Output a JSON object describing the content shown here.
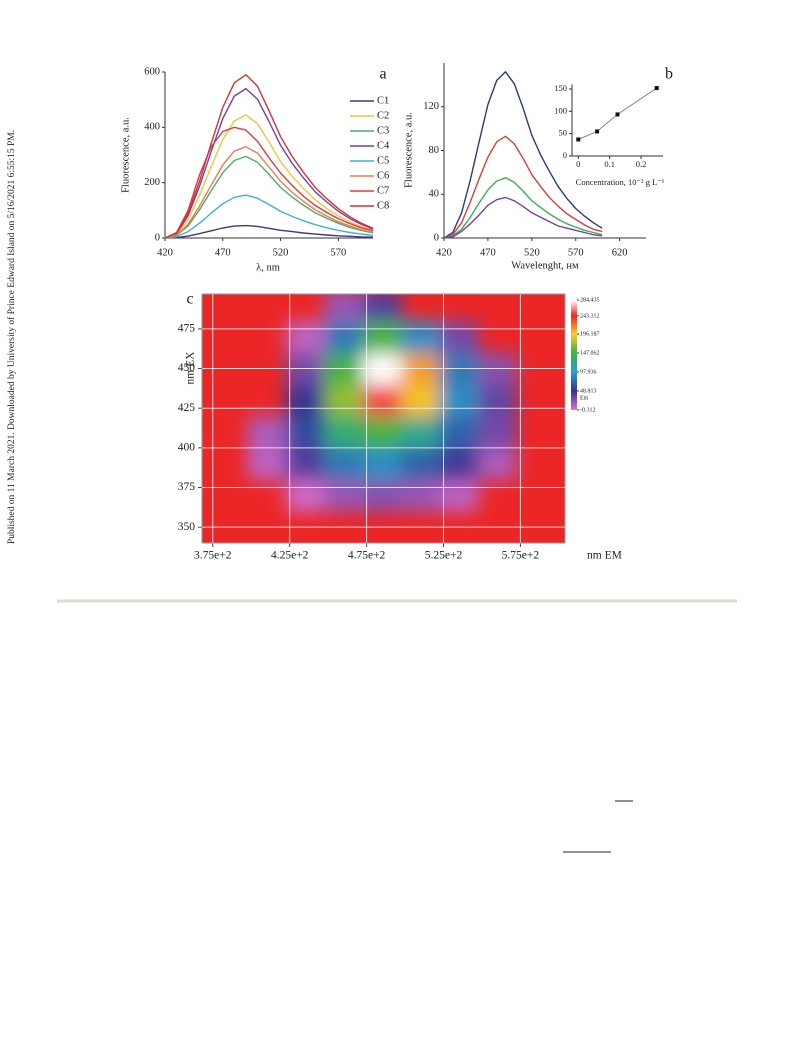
{
  "side_note": "Published on 11 March 2021. Downloaded by University of Prince Edward Island on 5/16/2021 6:55:15 PM.",
  "chart_data": [
    {
      "type": "line",
      "panel_label": "a",
      "xlabel": "λ, nm",
      "ylabel": "Fluorescence, a.u.",
      "x": [
        420,
        430,
        440,
        450,
        460,
        470,
        480,
        490,
        500,
        510,
        520,
        530,
        540,
        550,
        560,
        570,
        580,
        590,
        600
      ],
      "xlim": [
        420,
        600
      ],
      "xticks": [
        420,
        470,
        520,
        570
      ],
      "ylim": [
        0,
        600
      ],
      "yticks": [
        0,
        200,
        400,
        600
      ],
      "legend": "upper right",
      "series": [
        {
          "name": "C1",
          "color": "#3b3a7a",
          "values": [
            0,
            1,
            7,
            16,
            26,
            36,
            43,
            45,
            42,
            35,
            28,
            23,
            18,
            14,
            11,
            8,
            6,
            4,
            3
          ]
        },
        {
          "name": "C2",
          "color": "#f5c242",
          "values": [
            0,
            13,
            67,
            156,
            258,
            356,
            423,
            445,
            414,
            347,
            276,
            223,
            178,
            138,
            107,
            80,
            58,
            40,
            27
          ]
        },
        {
          "name": "C3",
          "color": "#4cae6a",
          "values": [
            0,
            9,
            44,
            103,
            171,
            236,
            280,
            295,
            274,
            230,
            183,
            148,
            118,
            91,
            71,
            53,
            38,
            27,
            18
          ]
        },
        {
          "name": "C4",
          "color": "#7b3fa0",
          "values": [
            0,
            16,
            81,
            189,
            313,
            432,
            513,
            540,
            502,
            421,
            335,
            270,
            216,
            167,
            130,
            97,
            70,
            49,
            32
          ]
        },
        {
          "name": "C5",
          "color": "#3fb0e0",
          "values": [
            0,
            5,
            23,
            54,
            90,
            124,
            147,
            155,
            144,
            121,
            96,
            78,
            62,
            48,
            37,
            28,
            20,
            14,
            9
          ]
        },
        {
          "name": "C6",
          "color": "#f07a50",
          "values": [
            0,
            10,
            50,
            116,
            191,
            264,
            314,
            330,
            307,
            257,
            205,
            165,
            132,
            102,
            79,
            59,
            43,
            30,
            20
          ]
        },
        {
          "name": "C7",
          "color": "#e03c3c",
          "values": [
            0,
            20,
            100,
            230,
            330,
            385,
            400,
            390,
            350,
            290,
            235,
            190,
            150,
            118,
            92,
            70,
            52,
            37,
            26
          ]
        },
        {
          "name": "C8",
          "color": "#cf3535",
          "values": [
            0,
            18,
            89,
            207,
            342,
            472,
            561,
            590,
            549,
            460,
            366,
            295,
            236,
            183,
            142,
            106,
            77,
            53,
            35
          ]
        }
      ]
    },
    {
      "type": "line",
      "panel_label": "b",
      "xlabel": "Wavelenght,  нм",
      "ylabel": "Fluorescence, a.u.",
      "x": [
        420,
        430,
        440,
        450,
        460,
        470,
        480,
        490,
        500,
        510,
        520,
        530,
        540,
        550,
        560,
        570,
        580,
        590,
        600
      ],
      "xlim": [
        420,
        650
      ],
      "xticks": [
        420,
        470,
        520,
        570,
        620
      ],
      "ylim": [
        0,
        160
      ],
      "yticks": [
        0,
        40,
        80,
        120
      ],
      "series": [
        {
          "color": "#2a3a7a",
          "values": [
            0,
            5,
            23,
            53,
            88,
            122,
            144,
            152,
            141,
            119,
            94,
            76,
            61,
            47,
            36,
            27,
            20,
            14,
            9
          ]
        },
        {
          "color": "#e03c3c",
          "values": [
            0,
            3,
            14,
            33,
            54,
            74,
            88,
            93,
            86,
            73,
            58,
            47,
            37,
            29,
            22,
            17,
            12,
            8,
            6
          ]
        },
        {
          "color": "#3cae5a",
          "values": [
            0,
            2,
            8,
            19,
            32,
            44,
            52,
            55,
            51,
            43,
            34,
            28,
            22,
            17,
            13,
            10,
            7,
            5,
            3
          ]
        },
        {
          "color": "#7b3fa0",
          "values": [
            0,
            1,
            6,
            13,
            21,
            30,
            35,
            37,
            34,
            29,
            23,
            19,
            15,
            11,
            9,
            7,
            5,
            3,
            2
          ]
        }
      ]
    },
    {
      "type": "line",
      "xlabel": "Concentration, 10⁻² g L⁻¹",
      "marker": "square",
      "x": [
        0,
        0.06,
        0.125,
        0.25
      ],
      "xlim": [
        -0.02,
        0.27
      ],
      "xticks": [
        0,
        0.1,
        0.2
      ],
      "ylim": [
        0,
        160
      ],
      "yticks": [
        0,
        50,
        100,
        150
      ],
      "series": [
        {
          "color": "#888888",
          "values": [
            37,
            55,
            93,
            152
          ]
        }
      ]
    },
    {
      "type": "heatmap",
      "panel_label": "c",
      "xlabel": "nm EM",
      "ylabel": "nm EX",
      "grid": true,
      "x": [
        385,
        410,
        435,
        460,
        485,
        510,
        535,
        560,
        585
      ],
      "y": [
        350,
        370,
        390,
        410,
        430,
        450,
        470,
        490
      ],
      "z": [
        [
          null,
          null,
          null,
          null,
          null,
          null,
          null,
          null,
          null
        ],
        [
          null,
          null,
          5,
          20,
          25,
          20,
          10,
          null,
          null
        ],
        [
          null,
          10,
          40,
          80,
          90,
          70,
          45,
          15,
          null
        ],
        [
          null,
          15,
          60,
          130,
          150,
          120,
          70,
          30,
          null
        ],
        [
          null,
          null,
          50,
          170,
          250,
          200,
          90,
          35,
          null
        ],
        [
          null,
          null,
          30,
          150,
          284,
          210,
          80,
          25,
          null
        ],
        [
          null,
          null,
          10,
          80,
          150,
          90,
          30,
          null,
          null
        ],
        [
          null,
          null,
          null,
          20,
          40,
          null,
          null,
          null,
          null
        ]
      ],
      "xlim": [
        368,
        604
      ],
      "ylim": [
        340,
        497
      ],
      "xticks": [
        {
          "value": 375,
          "label": "3.75e+2"
        },
        {
          "value": 425,
          "label": "4.25e+2"
        },
        {
          "value": 475,
          "label": "4.75e+2"
        },
        {
          "value": 525,
          "label": "5.25e+2"
        },
        {
          "value": 575,
          "label": "5.75e+2"
        }
      ],
      "yticks": [
        350,
        375,
        400,
        425,
        450,
        475
      ],
      "background": "#ec2626",
      "colorbar": {
        "label": "Em",
        "ticks": [
          284.435,
          243.312,
          196.187,
          147.062,
          97.936,
          48.813,
          -0.312
        ],
        "colors": [
          "#ffffff",
          "#ee2222",
          "#f5d020",
          "#3cb043",
          "#2a9fd0",
          "#33338f",
          "#e070d0"
        ]
      }
    }
  ]
}
